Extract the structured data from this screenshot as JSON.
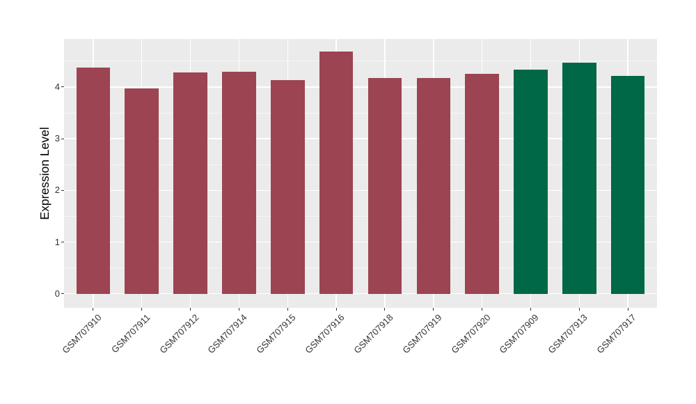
{
  "chart_data": {
    "type": "bar",
    "title": "",
    "xlabel": "",
    "ylabel": "Expression Level",
    "categories": [
      "GSM707910",
      "GSM707911",
      "GSM707912",
      "GSM707914",
      "GSM707915",
      "GSM707916",
      "GSM707918",
      "GSM707919",
      "GSM707920",
      "GSM707909",
      "GSM707913",
      "GSM707917"
    ],
    "values": [
      4.37,
      3.97,
      4.28,
      4.29,
      4.14,
      4.69,
      4.18,
      4.18,
      4.26,
      4.34,
      4.47,
      4.21
    ],
    "bar_colors": [
      "#9C4451",
      "#9C4451",
      "#9C4451",
      "#9C4451",
      "#9C4451",
      "#9C4451",
      "#9C4451",
      "#9C4451",
      "#9C4451",
      "#006747",
      "#006747",
      "#006747"
    ],
    "palette": {
      "maroon": "#9C4451",
      "green": "#006747"
    },
    "yticks": [
      0,
      1,
      2,
      3,
      4
    ],
    "ytick_labels": [
      "0",
      "1",
      "2",
      "3",
      "4"
    ],
    "ylim": [
      0,
      4.93
    ],
    "grid": true,
    "legend_position": "none",
    "panel_bg": "#EBEBEB",
    "grid_color": "#FFFFFF",
    "axis_text_color": "#333333",
    "tick_mark_color": "#333333"
  }
}
